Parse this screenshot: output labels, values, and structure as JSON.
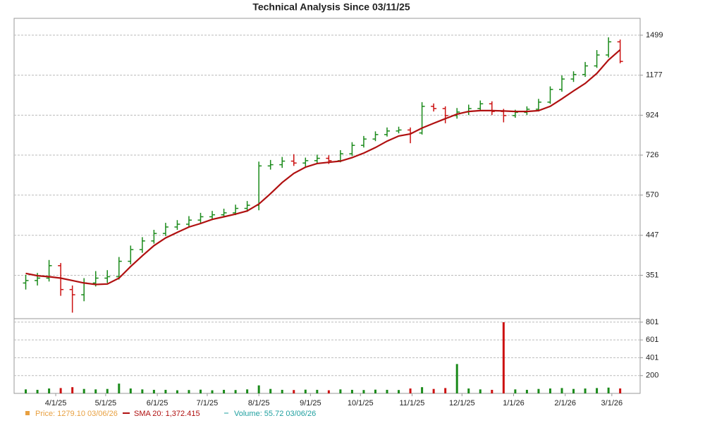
{
  "chart_data": [
    {
      "type": "ohlc",
      "title": "Technical Analysis Since 03/11/25",
      "log_scale": true,
      "grid": true,
      "x": [
        "3/14/25",
        "3/21/25",
        "3/28/25",
        "4/4/25",
        "4/11/25",
        "4/18/25",
        "4/25/25",
        "5/2/25",
        "5/9/25",
        "5/16/25",
        "5/23/25",
        "5/30/25",
        "6/6/25",
        "6/13/25",
        "6/20/25",
        "6/27/25",
        "7/4/25",
        "7/11/25",
        "7/18/25",
        "7/25/25",
        "8/1/25",
        "8/8/25",
        "8/15/25",
        "8/22/25",
        "8/29/25",
        "9/5/25",
        "9/12/25",
        "9/19/25",
        "9/26/25",
        "10/3/25",
        "10/10/25",
        "10/17/25",
        "10/24/25",
        "10/31/25",
        "11/7/25",
        "11/14/25",
        "11/21/25",
        "11/28/25",
        "12/5/25",
        "12/12/25",
        "12/19/25",
        "12/26/25",
        "1/2/26",
        "1/9/26",
        "1/16/26",
        "1/23/26",
        "1/30/26",
        "2/6/26",
        "2/13/26",
        "2/20/26",
        "2/27/26",
        "3/6/26"
      ],
      "xlim": [
        "3/7/25",
        "3/18/26"
      ],
      "xticks": [
        "4/1/25",
        "5/1/25",
        "6/1/25",
        "7/1/25",
        "8/1/25",
        "9/1/25",
        "10/1/25",
        "11/1/25",
        "12/1/25",
        "1/1/26",
        "2/1/26",
        "3/1/26"
      ],
      "ylim": [
        270,
        1660
      ],
      "yticks": [
        351,
        447,
        570,
        726,
        924,
        1177,
        1499
      ],
      "series": [
        {
          "name": "Price",
          "up_color": "#1a8a1a",
          "down_color": "#cc1111",
          "open": [
            335,
            340,
            345,
            372,
            322,
            312,
            335,
            345,
            348,
            382,
            410,
            432,
            452,
            470,
            478,
            490,
            500,
            506,
            512,
            526,
            536,
            680,
            685,
            700,
            692,
            702,
            712,
            702,
            732,
            770,
            800,
            822,
            840,
            845,
            830,
            975,
            962,
            922,
            942,
            962,
            990,
            945,
            922,
            940,
            958,
            1000,
            1080,
            1150,
            1182,
            1245,
            1330,
            1440
          ],
          "high": [
            352,
            356,
            385,
            378,
            330,
            345,
            360,
            362,
            392,
            420,
            442,
            462,
            482,
            490,
            502,
            512,
            518,
            525,
            538,
            550,
            698,
            705,
            718,
            730,
            715,
            728,
            725,
            748,
            785,
            815,
            838,
            858,
            862,
            858,
            1000,
            992,
            975,
            965,
            985,
            1010,
            1005,
            960,
            955,
            975,
            1020,
            1100,
            1175,
            1205,
            1275,
            1370,
            1480,
            1460
          ],
          "low": [
            322,
            330,
            338,
            310,
            280,
            300,
            328,
            335,
            342,
            375,
            402,
            425,
            445,
            462,
            470,
            482,
            490,
            498,
            505,
            515,
            520,
            665,
            672,
            680,
            672,
            690,
            688,
            695,
            722,
            760,
            790,
            812,
            828,
            780,
            822,
            945,
            880,
            905,
            925,
            950,
            925,
            885,
            910,
            925,
            945,
            990,
            1065,
            1130,
            1165,
            1230,
            1310,
            1265
          ],
          "close": [
            340,
            345,
            372,
            322,
            312,
            335,
            345,
            348,
            382,
            410,
            432,
            452,
            470,
            478,
            490,
            500,
            506,
            512,
            526,
            536,
            680,
            685,
            700,
            692,
            702,
            712,
            702,
            732,
            770,
            800,
            822,
            840,
            845,
            830,
            975,
            962,
            922,
            942,
            962,
            990,
            945,
            922,
            940,
            958,
            1000,
            1080,
            1150,
            1182,
            1245,
            1330,
            1440,
            1279.1
          ]
        },
        {
          "name": "SMA 20",
          "color": "#b01010",
          "values": [
            355,
            350,
            348,
            345,
            340,
            335,
            332,
            333,
            345,
            370,
            395,
            420,
            440,
            455,
            470,
            480,
            492,
            500,
            508,
            518,
            540,
            575,
            615,
            650,
            675,
            690,
            695,
            700,
            715,
            735,
            760,
            790,
            815,
            825,
            855,
            880,
            905,
            930,
            945,
            950,
            950,
            948,
            945,
            945,
            950,
            975,
            1020,
            1070,
            1120,
            1190,
            1290,
            1372.415
          ]
        }
      ],
      "legend": [
        {
          "text": "Price: 1279.10  03/06/26",
          "color": "#e8a040"
        },
        {
          "text": "SMA 20: 1,372.415",
          "color": "#b01010"
        },
        {
          "text": "Volume: 55.72  03/06/26",
          "color": "#20a0a0"
        }
      ]
    },
    {
      "type": "bar",
      "name": "Volume",
      "grid": true,
      "x": [
        "3/14/25",
        "3/21/25",
        "3/28/25",
        "4/4/25",
        "4/11/25",
        "4/18/25",
        "4/25/25",
        "5/2/25",
        "5/9/25",
        "5/16/25",
        "5/23/25",
        "5/30/25",
        "6/6/25",
        "6/13/25",
        "6/20/25",
        "6/27/25",
        "7/4/25",
        "7/11/25",
        "7/18/25",
        "7/25/25",
        "8/1/25",
        "8/8/25",
        "8/15/25",
        "8/22/25",
        "8/29/25",
        "9/5/25",
        "9/12/25",
        "9/19/25",
        "9/26/25",
        "10/3/25",
        "10/10/25",
        "10/17/25",
        "10/24/25",
        "10/31/25",
        "11/7/25",
        "11/14/25",
        "11/21/25",
        "11/28/25",
        "12/5/25",
        "12/12/25",
        "12/19/25",
        "12/26/25",
        "1/2/26",
        "1/9/26",
        "1/16/26",
        "1/23/26",
        "1/30/26",
        "2/6/26",
        "2/13/26",
        "2/20/26",
        "2/27/26",
        "3/6/26"
      ],
      "values": [
        45,
        40,
        55,
        60,
        70,
        50,
        45,
        50,
        110,
        55,
        45,
        40,
        40,
        35,
        38,
        42,
        35,
        40,
        38,
        45,
        90,
        50,
        40,
        38,
        42,
        40,
        35,
        45,
        40,
        38,
        42,
        40,
        38,
        55,
        70,
        50,
        60,
        330,
        55,
        45,
        40,
        800,
        45,
        40,
        50,
        55,
        60,
        50,
        55,
        60,
        65,
        55.72
      ],
      "ylim": [
        0,
        840
      ],
      "yticks": [
        200,
        401,
        601,
        801
      ]
    }
  ]
}
